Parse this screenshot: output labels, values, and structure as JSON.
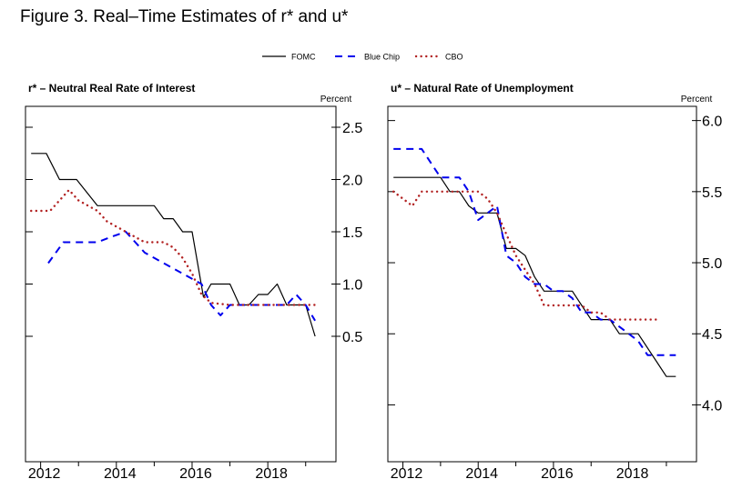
{
  "figure_title": "Figure 3.  Real–Time Estimates of r* and u*",
  "legend": [
    {
      "label": "FOMC",
      "color": "#000000",
      "style": "solid"
    },
    {
      "label": "Blue Chip",
      "color": "#0000ee",
      "style": "dashed"
    },
    {
      "label": "CBO",
      "color": "#b22222",
      "style": "dotted"
    }
  ],
  "chart_data": [
    {
      "type": "line",
      "title": "r* – Neutral Real Rate of Interest",
      "ylabel": "Percent",
      "xlim": [
        2011.6,
        2019.8
      ],
      "ylim": [
        -0.7,
        2.7
      ],
      "xticks": [
        2012,
        2014,
        2016,
        2018
      ],
      "yticks": [
        0.5,
        1.0,
        1.5,
        2.0,
        2.5
      ],
      "ytick_labels": [
        "0.5",
        "1.0",
        "1.5",
        "2.0",
        "2.5"
      ],
      "series": [
        {
          "name": "FOMC",
          "x": [
            2011.75,
            2012.15,
            2012.5,
            2012.95,
            2013.5,
            2014.0,
            2014.5,
            2015.0,
            2015.25,
            2015.5,
            2015.75,
            2016.0,
            2016.3,
            2016.5,
            2016.75,
            2017.0,
            2017.25,
            2017.5,
            2017.75,
            2018.0,
            2018.25,
            2018.5,
            2018.75,
            2019.0,
            2019.25
          ],
          "values": [
            2.25,
            2.25,
            2.0,
            2.0,
            1.75,
            1.75,
            1.75,
            1.75,
            1.625,
            1.625,
            1.5,
            1.5,
            0.875,
            1.0,
            1.0,
            1.0,
            0.8,
            0.8,
            0.9,
            0.9,
            1.0,
            0.8,
            0.8,
            0.8,
            0.5
          ]
        },
        {
          "name": "Blue Chip",
          "x": [
            2012.2,
            2012.6,
            2013.0,
            2013.5,
            2013.85,
            2014.25,
            2014.5,
            2014.75,
            2015.0,
            2015.25,
            2015.5,
            2015.75,
            2016.0,
            2016.25,
            2016.5,
            2016.75,
            2017.0,
            2017.5,
            2018.0,
            2018.25,
            2018.5,
            2018.75,
            2019.0,
            2019.25
          ],
          "values": [
            1.2,
            1.4,
            1.4,
            1.4,
            1.45,
            1.5,
            1.4,
            1.3,
            1.25,
            1.2,
            1.15,
            1.1,
            1.05,
            1.0,
            0.8,
            0.7,
            0.8,
            0.8,
            0.8,
            0.8,
            0.8,
            0.9,
            0.8,
            0.65
          ]
        },
        {
          "name": "CBO",
          "x": [
            2011.75,
            2012.25,
            2012.75,
            2013.0,
            2013.5,
            2013.75,
            2014.0,
            2014.25,
            2014.5,
            2014.75,
            2015.0,
            2015.25,
            2015.5,
            2015.75,
            2016.0,
            2016.25,
            2016.5,
            2017.0,
            2017.5,
            2018.0,
            2018.5,
            2018.75,
            2019.0,
            2019.25
          ],
          "values": [
            1.7,
            1.7,
            1.9,
            1.8,
            1.7,
            1.6,
            1.55,
            1.5,
            1.45,
            1.4,
            1.4,
            1.4,
            1.35,
            1.25,
            1.1,
            0.9,
            0.82,
            0.8,
            0.8,
            0.8,
            0.8,
            0.8,
            0.8,
            0.8
          ]
        }
      ]
    },
    {
      "type": "line",
      "title": "u* – Natural Rate of Unemployment",
      "ylabel": "Percent",
      "xlim": [
        2011.6,
        2019.8
      ],
      "ylim": [
        3.6,
        6.1
      ],
      "xticks": [
        2012,
        2014,
        2016,
        2018
      ],
      "yticks": [
        4.0,
        4.5,
        5.0,
        5.5,
        6.0
      ],
      "ytick_labels": [
        "4.0",
        "4.5",
        "5.0",
        "5.5",
        "6.0"
      ],
      "series": [
        {
          "name": "FOMC",
          "x": [
            2011.75,
            2012.25,
            2012.75,
            2013.0,
            2013.25,
            2013.5,
            2013.75,
            2014.0,
            2014.25,
            2014.5,
            2014.75,
            2015.0,
            2015.25,
            2015.5,
            2015.75,
            2016.0,
            2016.25,
            2016.5,
            2016.75,
            2017.0,
            2017.25,
            2017.5,
            2017.75,
            2018.0,
            2018.25,
            2018.5,
            2018.75,
            2019.0,
            2019.25
          ],
          "values": [
            5.6,
            5.6,
            5.6,
            5.6,
            5.5,
            5.5,
            5.4,
            5.35,
            5.35,
            5.35,
            5.1,
            5.1,
            5.05,
            4.9,
            4.8,
            4.8,
            4.8,
            4.8,
            4.7,
            4.6,
            4.6,
            4.6,
            4.5,
            4.5,
            4.5,
            4.4,
            4.3,
            4.2,
            4.2
          ]
        },
        {
          "name": "Blue Chip",
          "x": [
            2011.75,
            2012.25,
            2012.5,
            2012.75,
            2013.0,
            2013.25,
            2013.5,
            2013.75,
            2014.0,
            2014.25,
            2014.5,
            2014.75,
            2015.0,
            2015.25,
            2015.5,
            2015.75,
            2016.0,
            2016.25,
            2016.5,
            2016.75,
            2017.0,
            2017.25,
            2017.5,
            2017.75,
            2018.0,
            2018.25,
            2018.5,
            2018.75,
            2019.0,
            2019.25
          ],
          "values": [
            5.8,
            5.8,
            5.8,
            5.7,
            5.6,
            5.6,
            5.6,
            5.5,
            5.3,
            5.35,
            5.4,
            5.05,
            5.0,
            4.9,
            4.85,
            4.85,
            4.8,
            4.8,
            4.75,
            4.65,
            4.65,
            4.6,
            4.6,
            4.55,
            4.5,
            4.45,
            4.35,
            4.35,
            4.35,
            4.35
          ]
        },
        {
          "name": "CBO",
          "x": [
            2011.75,
            2012.25,
            2012.5,
            2012.75,
            2013.0,
            2013.25,
            2013.5,
            2013.75,
            2014.0,
            2014.25,
            2014.5,
            2014.75,
            2015.0,
            2015.25,
            2015.5,
            2015.75,
            2016.0,
            2016.25,
            2016.5,
            2016.75,
            2017.0,
            2017.25,
            2017.5,
            2017.75,
            2018.0,
            2018.25,
            2018.5,
            2018.75
          ],
          "values": [
            5.5,
            5.4,
            5.5,
            5.5,
            5.5,
            5.5,
            5.5,
            5.5,
            5.5,
            5.45,
            5.35,
            5.2,
            5.05,
            4.95,
            4.85,
            4.7,
            4.7,
            4.7,
            4.7,
            4.7,
            4.65,
            4.65,
            4.6,
            4.6,
            4.6,
            4.6,
            4.6,
            4.6
          ]
        }
      ]
    }
  ]
}
